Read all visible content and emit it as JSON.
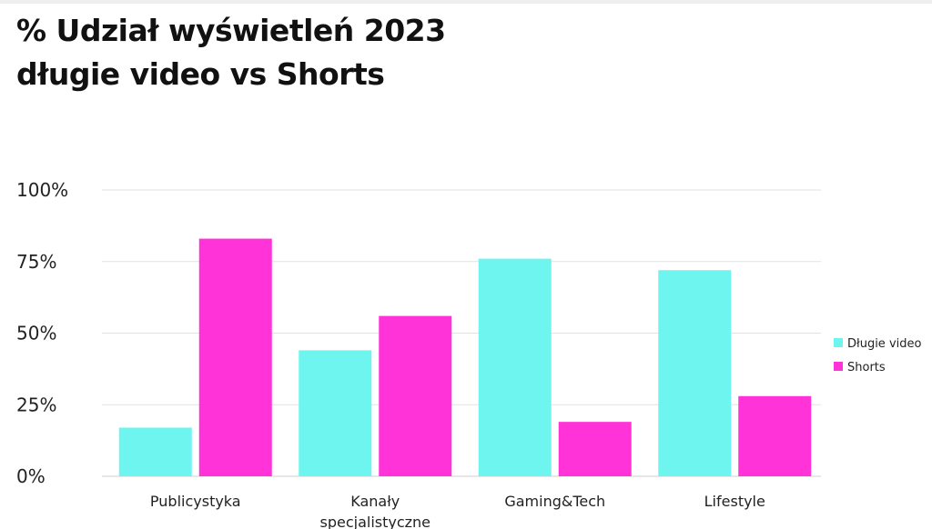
{
  "chart_data": {
    "type": "bar",
    "title": "% Udział wyświetleń 2023",
    "subtitle": "długie video vs Shorts",
    "categories": [
      "Publicystyka",
      "Kanały specjalistyczne",
      "Gaming&Tech",
      "Lifestyle"
    ],
    "series": [
      {
        "name": "Długie video",
        "color": "#6ff5f0",
        "values": [
          17,
          44,
          76,
          72
        ]
      },
      {
        "name": "Shorts",
        "color": "#ff33d7",
        "values": [
          83,
          56,
          19,
          28
        ]
      }
    ],
    "yticks": [
      "0%",
      "25%",
      "50%",
      "75%",
      "100%"
    ],
    "ylim": [
      0,
      100
    ],
    "grid": true,
    "legend": "right"
  }
}
